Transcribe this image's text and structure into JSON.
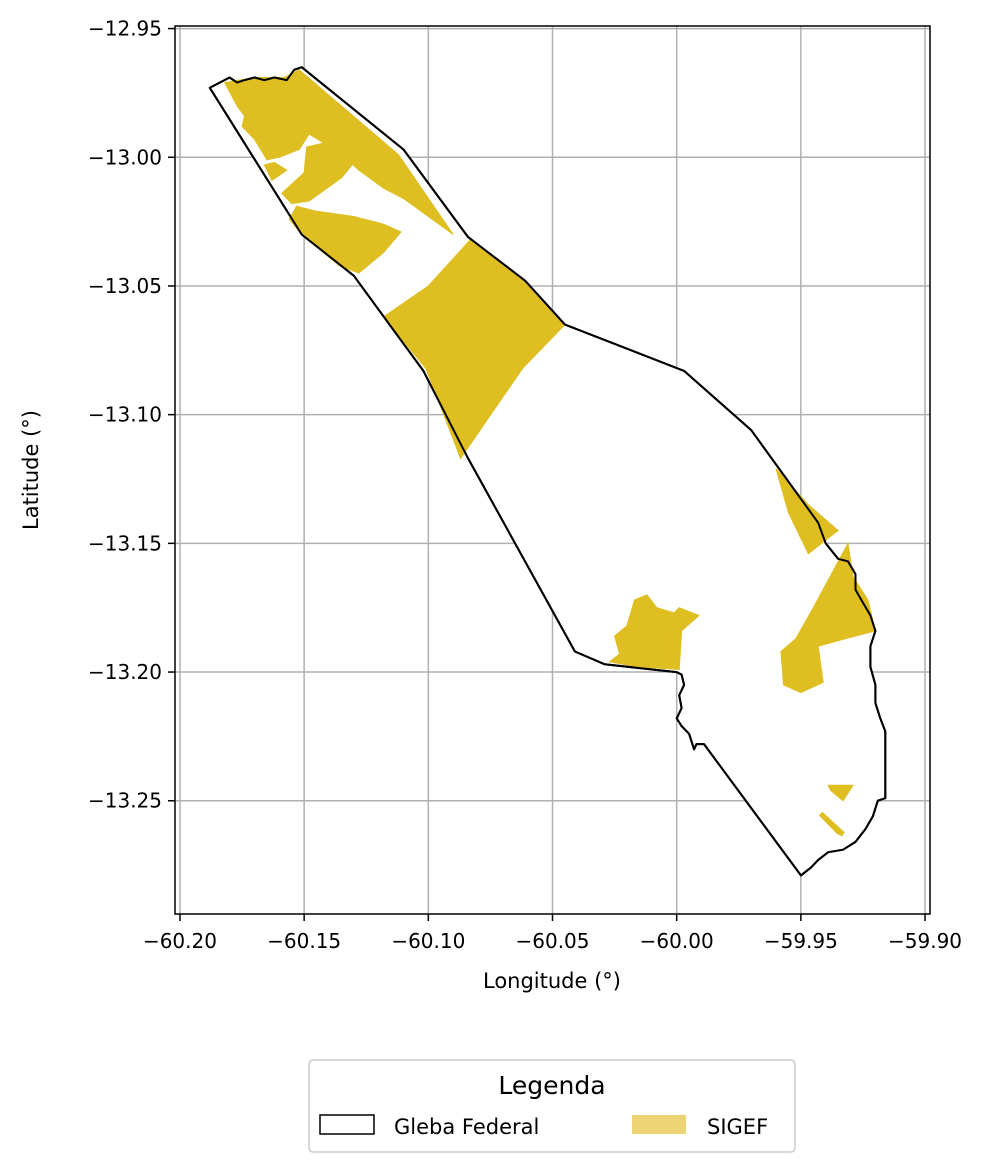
{
  "map": {
    "xlabel": "Longitude (°)",
    "ylabel": "Latitude (°)",
    "xlim": [
      -60.202,
      -59.898
    ],
    "ylim": [
      -13.294,
      -12.949
    ],
    "x_ticks": [
      -60.2,
      -60.15,
      -60.1,
      -60.05,
      -60.0,
      -59.95,
      -59.9
    ],
    "x_tick_labels": [
      "−60.20",
      "−60.15",
      "−60.10",
      "−60.05",
      "−60.00",
      "−59.95",
      "−59.90"
    ],
    "y_ticks": [
      -12.95,
      -13.0,
      -13.05,
      -13.1,
      -13.15,
      -13.2,
      -13.25
    ],
    "y_tick_labels": [
      "−12.95",
      "−13.00",
      "−13.05",
      "−13.10",
      "−13.15",
      "−13.20",
      "−13.25"
    ],
    "grid": true,
    "colors": {
      "gleba_edge": "#000000",
      "gleba_fill": "#ffffff",
      "sigef_fill": "#dfbe22",
      "sigef_legend": "#ecd475",
      "grid": "#b0b0b0"
    }
  },
  "legend": {
    "title": "Legenda",
    "placement": "bottom-center",
    "entries": [
      {
        "label": "Gleba Federal",
        "style": "outline"
      },
      {
        "label": "SIGEF",
        "style": "fill"
      }
    ]
  },
  "layers": {
    "gleba_federal": [
      [
        -60.188,
        -12.973
      ],
      [
        -60.18,
        -12.969
      ],
      [
        -60.177,
        -12.971
      ],
      [
        -60.174,
        -12.97
      ],
      [
        -60.17,
        -12.969
      ],
      [
        -60.166,
        -12.97
      ],
      [
        -60.162,
        -12.969
      ],
      [
        -60.157,
        -12.97
      ],
      [
        -60.154,
        -12.966
      ],
      [
        -60.151,
        -12.965
      ],
      [
        -60.11,
        -12.997
      ],
      [
        -60.084,
        -13.031
      ],
      [
        -60.061,
        -13.048
      ],
      [
        -60.045,
        -13.065
      ],
      [
        -59.997,
        -13.083
      ],
      [
        -59.97,
        -13.106
      ],
      [
        -59.943,
        -13.142
      ],
      [
        -59.94,
        -13.15
      ],
      [
        -59.935,
        -13.156
      ],
      [
        -59.931,
        -13.157
      ],
      [
        -59.928,
        -13.162
      ],
      [
        -59.928,
        -13.168
      ],
      [
        -59.925,
        -13.173
      ],
      [
        -59.922,
        -13.178
      ],
      [
        -59.92,
        -13.184
      ],
      [
        -59.922,
        -13.19
      ],
      [
        -59.922,
        -13.198
      ],
      [
        -59.92,
        -13.205
      ],
      [
        -59.92,
        -13.212
      ],
      [
        -59.918,
        -13.218
      ],
      [
        -59.916,
        -13.223
      ],
      [
        -59.916,
        -13.249
      ],
      [
        -59.919,
        -13.25
      ],
      [
        -59.921,
        -13.256
      ],
      [
        -59.924,
        -13.261
      ],
      [
        -59.928,
        -13.266
      ],
      [
        -59.933,
        -13.269
      ],
      [
        -59.939,
        -13.27
      ],
      [
        -59.943,
        -13.273
      ],
      [
        -59.946,
        -13.276
      ],
      [
        -59.95,
        -13.279
      ],
      [
        -59.989,
        -13.228
      ],
      [
        -59.992,
        -13.228
      ],
      [
        -59.993,
        -13.23
      ],
      [
        -59.995,
        -13.224
      ],
      [
        -59.998,
        -13.221
      ],
      [
        -60.0,
        -13.218
      ],
      [
        -59.998,
        -13.214
      ],
      [
        -59.999,
        -13.209
      ],
      [
        -59.997,
        -13.205
      ],
      [
        -59.998,
        -13.201
      ],
      [
        -60.0,
        -13.2
      ],
      [
        -60.029,
        -13.197
      ],
      [
        -60.041,
        -13.192
      ],
      [
        -60.084,
        -13.117
      ],
      [
        -60.102,
        -13.083
      ],
      [
        -60.13,
        -13.046
      ],
      [
        -60.151,
        -13.03
      ]
    ],
    "sigef": [
      [
        [
          -60.182,
          -12.971
        ],
        [
          -60.17,
          -12.969
        ],
        [
          -60.158,
          -12.969
        ],
        [
          -60.152,
          -12.966
        ],
        [
          -60.112,
          -12.999
        ],
        [
          -60.09,
          -13.03
        ],
        [
          -60.11,
          -13.016
        ],
        [
          -60.118,
          -13.012
        ],
        [
          -60.128,
          -13.005
        ],
        [
          -60.136,
          -12.998
        ],
        [
          -60.148,
          -12.991
        ],
        [
          -60.152,
          -12.997
        ],
        [
          -60.16,
          -13.0
        ],
        [
          -60.165,
          -13.001
        ],
        [
          -60.17,
          -12.993
        ],
        [
          -60.175,
          -12.988
        ],
        [
          -60.174,
          -12.984
        ],
        [
          -60.177,
          -12.98
        ]
      ],
      [
        [
          -60.149,
          -12.996
        ],
        [
          -60.14,
          -12.994
        ],
        [
          -60.129,
          -13.001
        ],
        [
          -60.135,
          -13.008
        ],
        [
          -60.148,
          -13.017
        ],
        [
          -60.155,
          -13.018
        ],
        [
          -60.159,
          -13.014
        ],
        [
          -60.15,
          -13.006
        ]
      ],
      [
        [
          -60.157,
          -13.005
        ],
        [
          -60.162,
          -13.002
        ],
        [
          -60.166,
          -13.003
        ],
        [
          -60.163,
          -13.009
        ]
      ],
      [
        [
          -60.153,
          -13.019
        ],
        [
          -60.145,
          -13.021
        ],
        [
          -60.13,
          -13.023
        ],
        [
          -60.118,
          -13.026
        ],
        [
          -60.111,
          -13.029
        ],
        [
          -60.118,
          -13.037
        ],
        [
          -60.128,
          -13.045
        ],
        [
          -60.136,
          -13.042
        ],
        [
          -60.151,
          -13.03
        ],
        [
          -60.156,
          -13.024
        ]
      ],
      [
        [
          -60.083,
          -13.032
        ],
        [
          -60.1,
          -13.05
        ],
        [
          -60.118,
          -13.062
        ],
        [
          -60.101,
          -13.082
        ],
        [
          -60.087,
          -13.117
        ],
        [
          -60.062,
          -13.082
        ],
        [
          -60.045,
          -13.065
        ],
        [
          -60.061,
          -13.048
        ]
      ]
    ],
    "sigef_south": [
      [
        [
          -59.96,
          -13.121
        ],
        [
          -59.947,
          -13.135
        ],
        [
          -59.935,
          -13.145
        ],
        [
          -59.947,
          -13.154
        ],
        [
          -59.955,
          -13.138
        ]
      ],
      [
        [
          -59.931,
          -13.15
        ],
        [
          -59.945,
          -13.175
        ],
        [
          -59.952,
          -13.187
        ],
        [
          -59.958,
          -13.192
        ],
        [
          -59.957,
          -13.205
        ],
        [
          -59.95,
          -13.208
        ],
        [
          -59.941,
          -13.204
        ],
        [
          -59.943,
          -13.19
        ],
        [
          -59.932,
          -13.187
        ],
        [
          -59.92,
          -13.184
        ],
        [
          -59.923,
          -13.172
        ],
        [
          -59.929,
          -13.163
        ]
      ],
      [
        [
          -60.027,
          -13.196
        ],
        [
          -60.023,
          -13.193
        ],
        [
          -60.025,
          -13.186
        ],
        [
          -60.02,
          -13.182
        ],
        [
          -60.017,
          -13.172
        ],
        [
          -60.012,
          -13.17
        ],
        [
          -60.008,
          -13.175
        ],
        [
          -60.001,
          -13.177
        ],
        [
          -59.999,
          -13.175
        ],
        [
          -59.991,
          -13.178
        ],
        [
          -59.998,
          -13.184
        ],
        [
          -59.999,
          -13.199
        ],
        [
          -60.015,
          -13.198
        ]
      ],
      [
        [
          -59.939,
          -13.244
        ],
        [
          -59.929,
          -13.244
        ],
        [
          -59.933,
          -13.25
        ],
        [
          -59.938,
          -13.246
        ]
      ],
      [
        [
          -59.942,
          -13.255
        ],
        [
          -59.933,
          -13.263
        ],
        [
          -59.935,
          -13.262
        ]
      ]
    ]
  }
}
